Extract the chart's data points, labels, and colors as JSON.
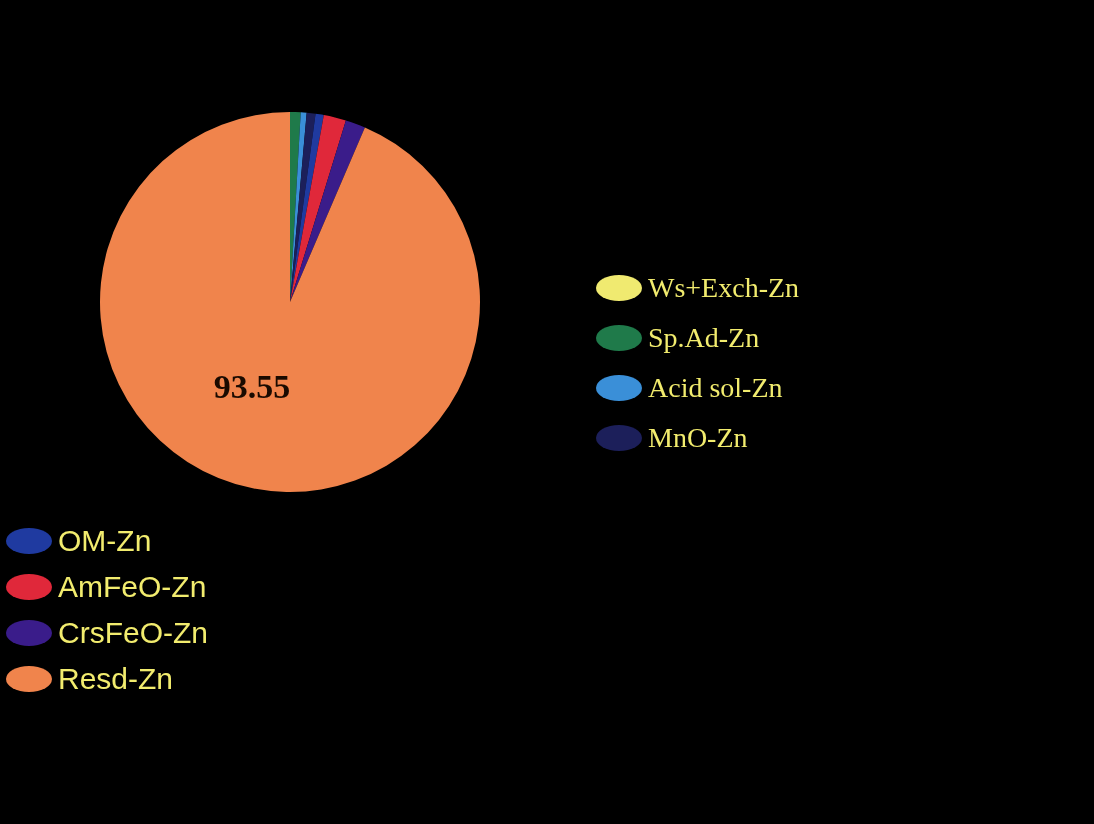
{
  "chart_data": {
    "type": "pie",
    "categories": [
      "Ws+Exch-Zn",
      "Sp.Ad-Zn",
      "Acid sol-Zn",
      "MnO-Zn",
      "OM-Zn",
      "AmFeO-Zn",
      "CrsFeO-Zn",
      "Resd-Zn"
    ],
    "values": [
      null,
      0.9,
      0.5,
      0.75,
      0.7,
      1.9,
      1.7,
      93.55
    ],
    "colors": [
      "#f0ea70",
      "#1f7a4a",
      "#3a8fd8",
      "#1c1f5a",
      "#1f3aa0",
      "#e0283a",
      "#3a1c8a",
      "#f0844c"
    ],
    "value_labels": [
      null,
      null,
      null,
      null,
      null,
      null,
      null,
      "93.55"
    ],
    "legend": "right"
  }
}
